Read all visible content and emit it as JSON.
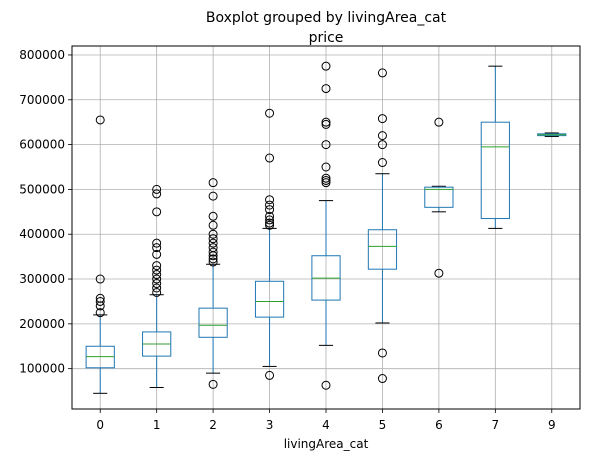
{
  "chart_data": {
    "type": "boxplot",
    "suptitle": "Boxplot grouped by livingArea_cat",
    "title": "price",
    "xlabel": "livingArea_cat",
    "ylabel": "",
    "categories": [
      "0",
      "1",
      "2",
      "3",
      "4",
      "5",
      "6",
      "7",
      "9"
    ],
    "ylim": [
      10000,
      820000
    ],
    "yticks": [
      100000,
      200000,
      300000,
      400000,
      500000,
      600000,
      700000,
      800000
    ],
    "ytick_labels": [
      "100000",
      "200000",
      "300000",
      "400000",
      "500000",
      "600000",
      "700000",
      "800000"
    ],
    "grid": true,
    "colors": {
      "box": "#1f77b4",
      "median": "#2ca02c",
      "whisker": "#000000",
      "flier": "#000000",
      "grid": "#b0b0b0"
    },
    "boxes": [
      {
        "category": "0",
        "whislo": 45000,
        "q1": 102000,
        "med": 127000,
        "q3": 150000,
        "whishi": 220000,
        "fliers": [
          225000,
          240000,
          250000,
          257000,
          300000,
          655000
        ]
      },
      {
        "category": "1",
        "whislo": 58000,
        "q1": 128000,
        "med": 155000,
        "q3": 182000,
        "whishi": 265000,
        "fliers": [
          270000,
          280000,
          290000,
          300000,
          310000,
          320000,
          330000,
          355000,
          370000,
          380000,
          450000,
          490000,
          500000
        ]
      },
      {
        "category": "2",
        "whislo": 90000,
        "q1": 170000,
        "med": 197000,
        "q3": 235000,
        "whishi": 333000,
        "fliers": [
          65000,
          338000,
          345000,
          352000,
          360000,
          370000,
          380000,
          390000,
          400000,
          420000,
          440000,
          485000,
          515000
        ]
      },
      {
        "category": "3",
        "whislo": 105000,
        "q1": 215000,
        "med": 250000,
        "q3": 295000,
        "whishi": 413000,
        "fliers": [
          85000,
          420000,
          425000,
          432000,
          440000,
          455000,
          465000,
          477000,
          570000,
          670000
        ]
      },
      {
        "category": "4",
        "whislo": 152000,
        "q1": 253000,
        "med": 302000,
        "q3": 352000,
        "whishi": 475000,
        "fliers": [
          63000,
          515000,
          520000,
          525000,
          550000,
          600000,
          645000,
          650000,
          725000,
          775000
        ]
      },
      {
        "category": "5",
        "whislo": 202000,
        "q1": 322000,
        "med": 373000,
        "q3": 410000,
        "whishi": 535000,
        "fliers": [
          78000,
          135000,
          560000,
          600000,
          620000,
          658000,
          760000
        ]
      },
      {
        "category": "6",
        "whislo": 450000,
        "q1": 460000,
        "med": 500000,
        "q3": 505000,
        "whishi": 507000,
        "fliers": [
          313000,
          650000
        ]
      },
      {
        "category": "7",
        "whislo": 413000,
        "q1": 435000,
        "med": 595000,
        "q3": 650000,
        "whishi": 775000,
        "fliers": []
      },
      {
        "category": "9",
        "whislo": 618000,
        "q1": 620000,
        "med": 622000,
        "q3": 624000,
        "whishi": 626000,
        "fliers": []
      }
    ]
  }
}
